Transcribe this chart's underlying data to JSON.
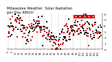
{
  "title": "Milwaukee Weather  Solar Radiation\nper Day KW/m²",
  "title_fontsize": 3.8,
  "ylim": [
    0,
    6
  ],
  "yticks": [
    0,
    1,
    2,
    3,
    4,
    5,
    6
  ],
  "ytick_labels": [
    "0",
    "1",
    "2",
    "3",
    "4",
    "5",
    "6"
  ],
  "ytick_fontsize": 3.0,
  "xtick_fontsize": 2.5,
  "background_color": "#ffffff",
  "series1_color": "#000000",
  "series2_color": "#cc0000",
  "legend_color": "#cc0000",
  "marker_size": 0.8,
  "grid_color": "#aaaaaa",
  "grid_linewidth": 0.3,
  "n_points": 130,
  "seed": 12
}
